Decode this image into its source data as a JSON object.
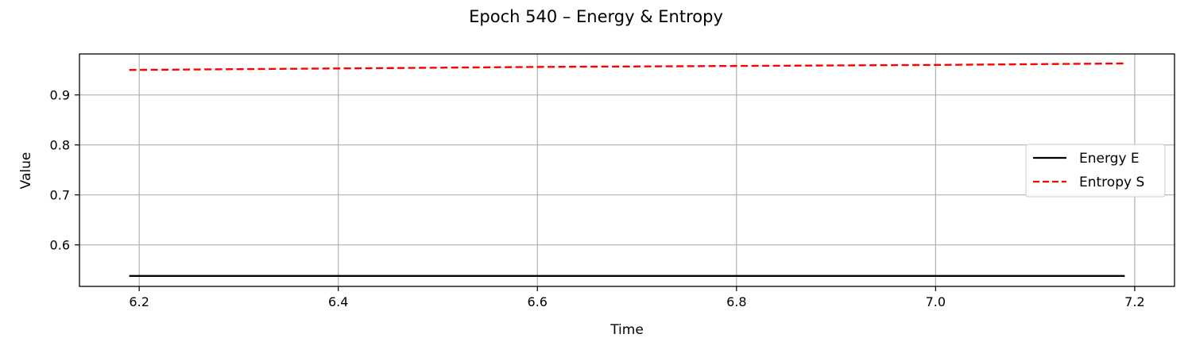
{
  "chart_data": {
    "type": "line",
    "title": "Epoch 540 – Energy & Entropy",
    "xlabel": "Time",
    "ylabel": "Value",
    "xlim": [
      6.14,
      7.24
    ],
    "ylim": [
      0.517,
      0.982
    ],
    "xticks": [
      6.2,
      6.4,
      6.6,
      6.8,
      7.0,
      7.2
    ],
    "xtick_labels": [
      "6.2",
      "6.4",
      "6.6",
      "6.8",
      "7.0",
      "7.2"
    ],
    "yticks": [
      0.6,
      0.7,
      0.8,
      0.9
    ],
    "ytick_labels": [
      "0.6",
      "0.7",
      "0.8",
      "0.9"
    ],
    "grid": true,
    "legend_position": "center-right",
    "series": [
      {
        "name": "Energy E",
        "color": "#000000",
        "style": "solid",
        "x": [
          6.19,
          6.4,
          6.6,
          6.8,
          7.0,
          7.19
        ],
        "y": [
          0.538,
          0.538,
          0.538,
          0.538,
          0.538,
          0.538
        ]
      },
      {
        "name": "Entropy S",
        "color": "#ff0000",
        "style": "dashed",
        "x": [
          6.19,
          6.4,
          6.6,
          6.8,
          7.0,
          7.19
        ],
        "y": [
          0.95,
          0.953,
          0.956,
          0.958,
          0.96,
          0.963
        ]
      }
    ]
  }
}
